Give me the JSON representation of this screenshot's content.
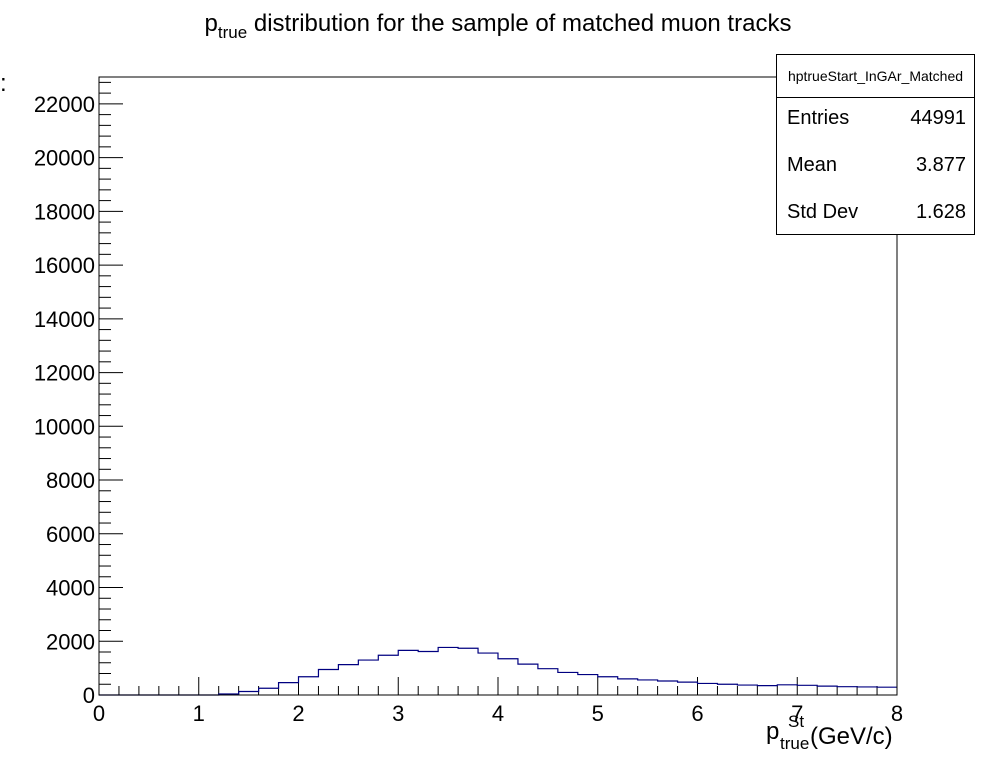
{
  "chart_data": {
    "type": "bar",
    "title_main": "p",
    "title_sub": "true",
    "title_rest": " distribution for the sample of matched muon tracks",
    "xlabel_main": "p",
    "xlabel_sup": "St",
    "xlabel_sub": "true",
    "xlabel_unit": "(GeV/c)",
    "xlim": [
      0,
      8
    ],
    "ylim": [
      0,
      23000
    ],
    "x_ticks": [
      0,
      1,
      2,
      3,
      4,
      5,
      6,
      7,
      8
    ],
    "y_ticks": [
      0,
      2000,
      4000,
      6000,
      8000,
      10000,
      12000,
      14000,
      16000,
      18000,
      20000,
      22000
    ],
    "bin_width": 0.2,
    "bin_edges_start": 0,
    "values": [
      0,
      0,
      0,
      0,
      0,
      0,
      40,
      130,
      250,
      460,
      680,
      950,
      1130,
      1300,
      1480,
      1660,
      1620,
      1770,
      1740,
      1560,
      1350,
      1150,
      980,
      840,
      760,
      680,
      600,
      560,
      520,
      480,
      430,
      400,
      370,
      350,
      380,
      360,
      330,
      310,
      300,
      290
    ],
    "stats": {
      "name": "hptrueStart_InGAr_Matched",
      "rows": [
        {
          "label": "Entries",
          "value": "44991"
        },
        {
          "label": "Mean",
          "value": "3.877"
        },
        {
          "label": "Std Dev",
          "value": "1.628"
        }
      ]
    },
    "ylabel_fragment": ":",
    "line_color": "#000080"
  }
}
